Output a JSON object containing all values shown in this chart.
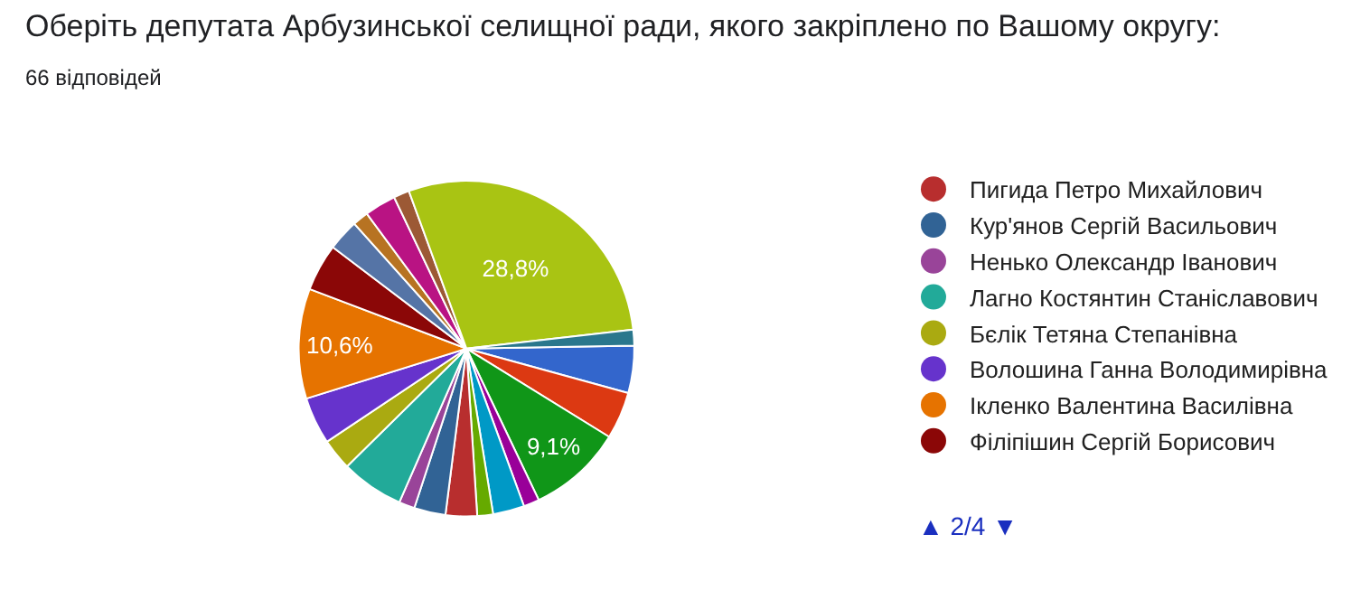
{
  "chart_data": {
    "type": "pie",
    "title": "Оберіть депутата Арбузинської селищної ради, якого закріплено по Вашому округу:",
    "subtitle": "66 відповідей",
    "categories": [
      null,
      null,
      null,
      null,
      null,
      null,
      "Пигида Петро Михайлович",
      "Кур'янов Сергій Васильович",
      "Ненько Олександр Іванович",
      "Лагно Костянтин Станіславович",
      "Бєлік Тетяна Степанівна",
      "Волошина Ганна Володимирівна",
      "Ікленко Валентина Василівна",
      "Філіпішин Сергій Борисович",
      null,
      null,
      null,
      null,
      null,
      null
    ],
    "values": [
      4.55,
      4.55,
      9.1,
      1.52,
      3.03,
      1.52,
      3.03,
      3.03,
      1.52,
      6.06,
      3.03,
      4.55,
      10.6,
      4.55,
      3.03,
      1.52,
      3.03,
      1.52,
      28.8,
      1.52
    ],
    "colors": [
      "#3366cc",
      "#dc3912",
      "#109618",
      "#990099",
      "#0099c6",
      "#66aa00",
      "#b82e2e",
      "#316395",
      "#994499",
      "#22aa99",
      "#aaaa11",
      "#6633cc",
      "#e67300",
      "#8b0707",
      "#5574a6",
      "#b77322",
      "#b91383",
      "#9c5935",
      "#a9c413",
      "#2a778d"
    ],
    "value_labels": [
      null,
      null,
      "9,1%",
      null,
      null,
      null,
      null,
      null,
      null,
      null,
      null,
      null,
      "10,6%",
      null,
      null,
      null,
      null,
      null,
      "28,8%",
      null
    ],
    "legend": "right",
    "annotations": [
      "▲ 2/4 ▼"
    ]
  }
}
